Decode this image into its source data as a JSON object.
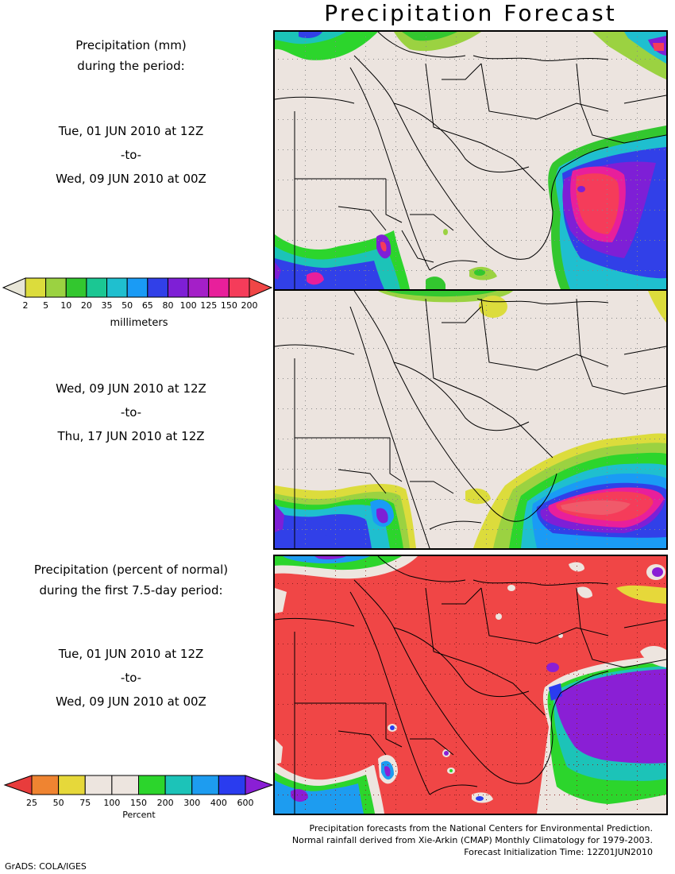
{
  "title": "Precipitation Forecast",
  "panel1": {
    "header_line1": "Precipitation (mm)",
    "header_line2": "during the period:",
    "start": "Tue, 01 JUN 2010 at 12Z",
    "to": "-to-",
    "end": "Wed, 09 JUN 2010 at 00Z"
  },
  "panel2": {
    "start": "Wed, 09 JUN 2010 at 12Z",
    "to": "-to-",
    "end": "Thu, 17 JUN 2010 at 12Z"
  },
  "panel3": {
    "header_line1": "Precipitation (percent of normal)",
    "header_line2": "during the first 7.5-day period:",
    "start": "Tue, 01 JUN 2010 at 12Z",
    "to": "-to-",
    "end": "Wed, 09 JUN 2010 at 00Z"
  },
  "mm_legend": {
    "ticks": [
      "2",
      "5",
      "10",
      "20",
      "35",
      "50",
      "65",
      "80",
      "100",
      "125",
      "150",
      "200"
    ],
    "colors": [
      "#e8e6d8",
      "#dcdc3c",
      "#9bd241",
      "#33c72f",
      "#1bc793",
      "#1fbfcf",
      "#1a9bf5",
      "#3140e8",
      "#7e1fd6",
      "#a41fc8",
      "#e81f9b",
      "#f53c5a",
      "#f04646"
    ],
    "unit": "millimeters"
  },
  "pct_legend": {
    "ticks": [
      "25",
      "50",
      "75",
      "100",
      "150",
      "200",
      "300",
      "400",
      "600"
    ],
    "colors": [
      "#e83c3c",
      "#ef8431",
      "#e6d83a",
      "#ede5df",
      "#ede5df",
      "#2cd52c",
      "#1cc3b8",
      "#1d9cf0",
      "#2a3cef",
      "#8a1fd5"
    ],
    "unit": "Percent"
  },
  "footer": {
    "line1": "Precipitation forecasts from the National Centers for Environmental Prediction.",
    "line2": "Normal rainfall derived from Xie-Arkin (CMAP) Monthly Climatology for 1979-2003.",
    "line3": "Forecast Initialization Time: 12Z01JUN2010",
    "credit": "GrADS: COLA/IGES"
  }
}
